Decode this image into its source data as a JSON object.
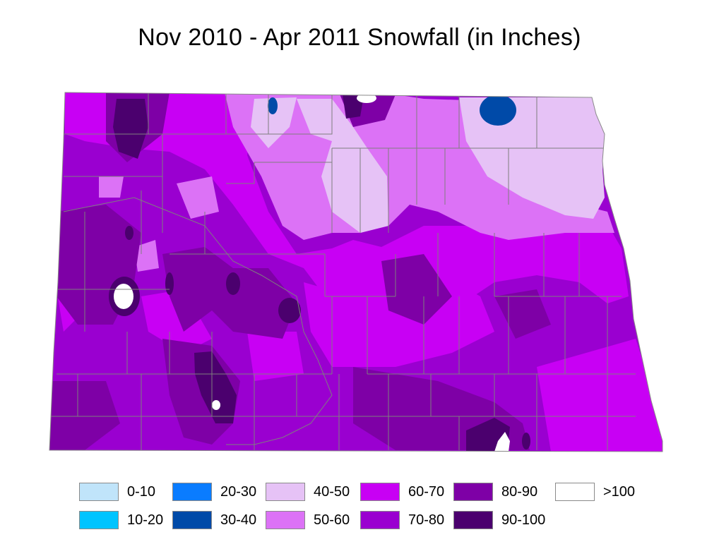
{
  "title": "Nov 2010 - Apr 2011 Snowfall (in Inches)",
  "map": {
    "region": "north-dakota",
    "base_color": "#9a00d0",
    "county_line_color": "#7f7f7f"
  },
  "legend": [
    {
      "label": "0-10",
      "color": "#c0e4fa"
    },
    {
      "label": "10-20",
      "color": "#00c4ff"
    },
    {
      "label": "20-30",
      "color": "#0a7cff"
    },
    {
      "label": "30-40",
      "color": "#004aa8"
    },
    {
      "label": "40-50",
      "color": "#e6c2f6"
    },
    {
      "label": "50-60",
      "color": "#dc72f6"
    },
    {
      "label": "60-70",
      "color": "#c800f4"
    },
    {
      "label": "70-80",
      "color": "#9a00d0"
    },
    {
      "label": "80-90",
      "color": "#7e00a6"
    },
    {
      "label": "90-100",
      "color": "#4b006e"
    },
    {
      "label": ">100",
      "color": "#ffffff"
    }
  ]
}
